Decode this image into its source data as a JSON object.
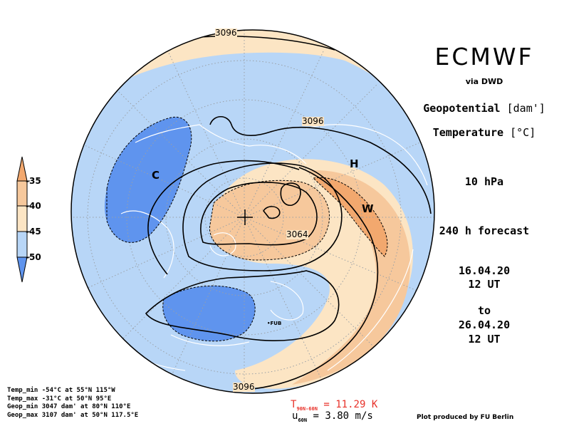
{
  "header": {
    "title": "ECMWF",
    "source": "via DWD"
  },
  "fields": {
    "geopotential_label": "Geopotential",
    "geopotential_unit": "[dam']",
    "temperature_label": "Temperature",
    "temperature_unit": "[°C]"
  },
  "level": "10 hPa",
  "forecast": "240 h forecast",
  "time": {
    "start_date": "16.04.20",
    "start_hour": "12 UT",
    "to": "to",
    "end_date": "26.04.20",
    "end_hour": "12 UT"
  },
  "map": {
    "projection": "north polar stereographic",
    "contour_labels": [
      "3096",
      "3096",
      "3064",
      "3096"
    ],
    "markers": {
      "low": "C",
      "high": "H",
      "warm": "W",
      "station": "FUB"
    },
    "colors": {
      "very_cold": "#5f94ee",
      "cold": "#b8d6f7",
      "neutral": "#fce5c4",
      "warm": "#f6c89c",
      "very_warm": "#f2a86e",
      "contour": "#000000",
      "coast": "#ffffff"
    }
  },
  "colorbar": {
    "labels": [
      "-35",
      "-40",
      "-45",
      "-50"
    ],
    "colors": [
      "#f2a86e",
      "#f6c89c",
      "#fce5c4",
      "#b8d6f7",
      "#5f94ee"
    ]
  },
  "stats": {
    "temp_min": "Temp_min -54°C at 55°N 115°W",
    "temp_max": "Temp_max -31°C at 50°N 95°E",
    "geop_min": "Geop_min 3047 dam' at 80°N 110°E",
    "geop_max": "Geop_max 3107 dam' at 50°N 117.5°E"
  },
  "diagnostics": {
    "t_diff_symbol": "T",
    "t_diff_sub": "90N-60N",
    "t_diff_value": "= 11.29 K",
    "u_symbol": "u",
    "u_sub": "60N",
    "u_value": "= 3.80 m/s"
  },
  "credit": "Plot produced by FU Berlin"
}
